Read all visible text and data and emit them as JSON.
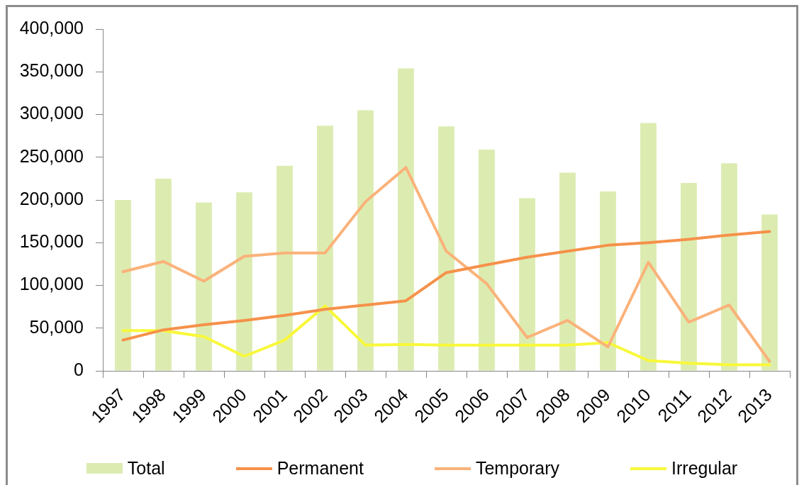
{
  "chart_data": {
    "type": "bar",
    "categories": [
      "1997",
      "1998",
      "1999",
      "2000",
      "2001",
      "2002",
      "2003",
      "2004",
      "2005",
      "2006",
      "2007",
      "2008",
      "2009",
      "2010",
      "2011",
      "2012",
      "2013"
    ],
    "series": [
      {
        "name": "Total",
        "color": "#dcecb1",
        "values": [
          200000,
          225000,
          197000,
          209000,
          240000,
          287000,
          305000,
          354000,
          286000,
          259000,
          202000,
          232000,
          210000,
          290000,
          220000,
          243000,
          183000
        ]
      },
      {
        "name": "Permanent",
        "type": "line",
        "color": "#f6914a",
        "values": [
          36000,
          48000,
          54000,
          59000,
          65000,
          72000,
          77000,
          82000,
          115000,
          124000,
          133000,
          140000,
          147000,
          150000,
          154000,
          159000,
          163000
        ]
      },
      {
        "name": "Temporary",
        "type": "line",
        "color": "#fab27a",
        "values": [
          116000,
          128000,
          105000,
          134000,
          138000,
          138000,
          198000,
          238000,
          140000,
          102000,
          39000,
          59000,
          28000,
          127000,
          57000,
          77000,
          11000
        ]
      },
      {
        "name": "Irregular",
        "type": "line",
        "color": "#f8f83a",
        "values": [
          47000,
          47000,
          40000,
          17000,
          36000,
          76000,
          30000,
          31000,
          30000,
          30000,
          30000,
          30000,
          33000,
          12000,
          9000,
          7000,
          7000
        ]
      }
    ],
    "ylim": [
      0,
      400000
    ],
    "yticks": [
      {
        "value": 0,
        "label": "0"
      },
      {
        "value": 50000,
        "label": "50,000"
      },
      {
        "value": 100000,
        "label": "100,000"
      },
      {
        "value": 150000,
        "label": "150,000"
      },
      {
        "value": 200000,
        "label": "200,000"
      },
      {
        "value": 250000,
        "label": "250,000"
      },
      {
        "value": 300000,
        "label": "300,000"
      },
      {
        "value": 350000,
        "label": "350,000"
      },
      {
        "value": 400000,
        "label": "400,000"
      }
    ],
    "grid": false,
    "legend": "bottom"
  }
}
